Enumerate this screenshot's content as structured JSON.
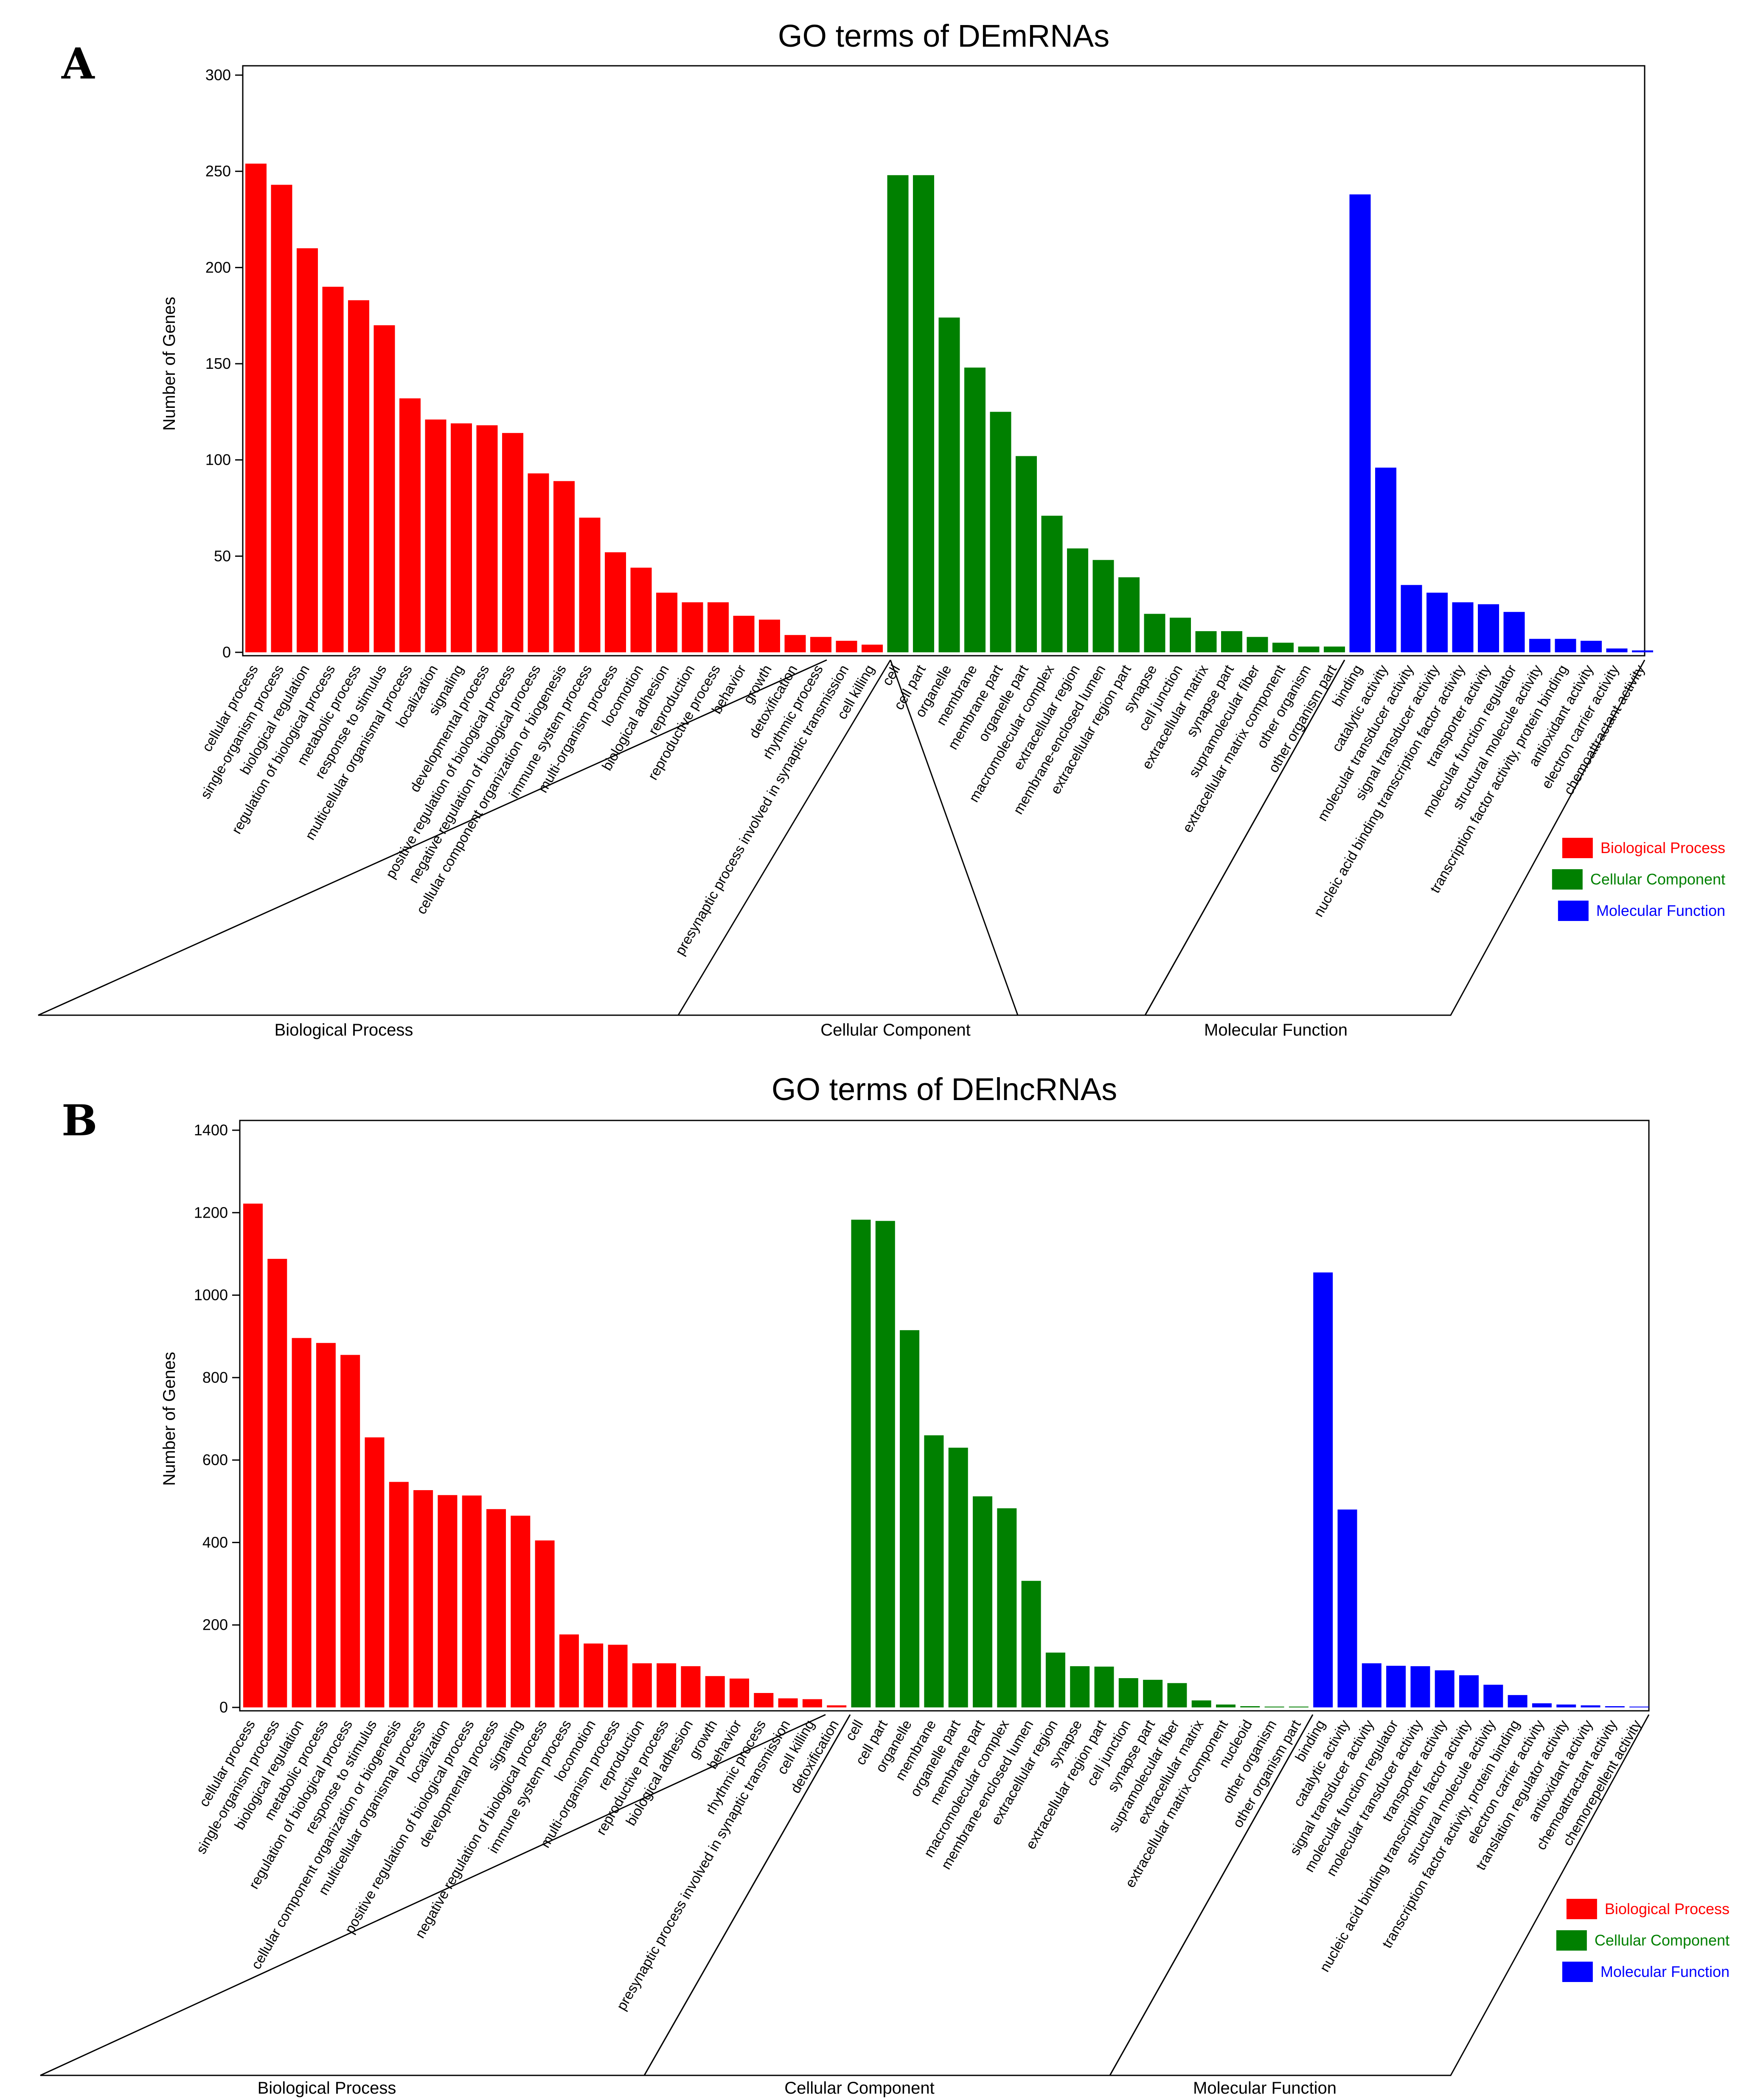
{
  "colors": {
    "biological": "#ff0000",
    "cellular": "#008000",
    "molecular": "#0000ff"
  },
  "chart_data": [
    {
      "panel_label": "A",
      "type": "bar",
      "title": "GO terms of DEmRNAs",
      "ylabel": "Number of Genes",
      "ylim": [
        0,
        300
      ],
      "yticks": [
        0,
        50,
        100,
        150,
        200,
        250,
        300
      ],
      "groups": [
        {
          "name": "Biological Process",
          "key": "biological",
          "categories": [
            "cellular process",
            "single-organism process",
            "biological regulation",
            "regulation of biological process",
            "metabolic process",
            "response to stimulus",
            "multicellular organismal process",
            "localization",
            "signaling",
            "developmental process",
            "positive regulation of biological process",
            "negative regulation of biological process",
            "cellular component organization or biogenesis",
            "immune system process",
            "multi-organism process",
            "locomotion",
            "biological adhesion",
            "reproduction",
            "reproductive process",
            "behavior",
            "growth",
            "detoxification",
            "rhythmic process",
            "presynaptic process involved in synaptic transmission",
            "cell killing"
          ],
          "values": [
            254,
            243,
            210,
            190,
            183,
            170,
            132,
            121,
            119,
            118,
            114,
            93,
            89,
            70,
            52,
            44,
            31,
            26,
            26,
            19,
            17,
            9,
            8,
            6,
            4
          ]
        },
        {
          "name": "Cellular Component",
          "key": "cellular",
          "categories": [
            "cell",
            "cell part",
            "organelle",
            "membrane",
            "membrane part",
            "organelle part",
            "macromolecular complex",
            "extracellular region",
            "membrane-enclosed lumen",
            "extracellular region part",
            "synapse",
            "cell junction",
            "extracellular matrix",
            "synapse part",
            "supramolecular fiber",
            "extracellular matrix component",
            "other organism",
            "other organism part"
          ],
          "values": [
            248,
            248,
            174,
            148,
            125,
            102,
            71,
            54,
            48,
            39,
            20,
            18,
            11,
            11,
            8,
            5,
            3,
            3
          ]
        },
        {
          "name": "Molecular Function",
          "key": "molecular",
          "categories": [
            "binding",
            "catalytic activity",
            "molecular transducer activity",
            "signal transducer activity",
            "nucleic acid binding transcription factor activity",
            "transporter activity",
            "molecular function regulator",
            "structural molecule activity",
            "transcription factor activity, protein binding",
            "antioxidant activity",
            "electron carrier activity",
            "chemoattractant activity"
          ],
          "values": [
            238,
            96,
            35,
            31,
            26,
            25,
            21,
            7,
            7,
            6,
            2,
            1
          ]
        }
      ],
      "legend": [
        "Biological Process",
        "Cellular Component",
        "Molecular Function"
      ]
    },
    {
      "panel_label": "B",
      "type": "bar",
      "title": "GO terms of DElncRNAs",
      "ylabel": "Number of Genes",
      "ylim": [
        0,
        1400
      ],
      "yticks": [
        0,
        200,
        400,
        600,
        800,
        1000,
        1200,
        1400
      ],
      "groups": [
        {
          "name": "Biological Process",
          "key": "biological",
          "categories": [
            "cellular process",
            "single-organism process",
            "biological regulation",
            "metabolic process",
            "regulation of biological process",
            "response to stimulus",
            "cellular component organization or biogenesis",
            "multicellular organismal process",
            "localization",
            "positive regulation of biological process",
            "developmental process",
            "signaling",
            "negative regulation of biological process",
            "immune system process",
            "locomotion",
            "multi-organism process",
            "reproduction",
            "reproductive process",
            "biological adhesion",
            "growth",
            "behavior",
            "rhythmic process",
            "presynaptic process involved in synaptic transmission",
            "cell killing",
            "detoxification"
          ],
          "values": [
            1222,
            1088,
            896,
            884,
            855,
            655,
            547,
            527,
            515,
            514,
            481,
            465,
            405,
            177,
            155,
            152,
            107,
            107,
            100,
            76,
            70,
            35,
            22,
            20,
            5
          ]
        },
        {
          "name": "Cellular Component",
          "key": "cellular",
          "categories": [
            "cell",
            "cell part",
            "organelle",
            "membrane",
            "organelle part",
            "membrane part",
            "macromolecular complex",
            "membrane-enclosed lumen",
            "extracellular region",
            "synapse",
            "extracellular region part",
            "cell junction",
            "synapse part",
            "supramolecular fiber",
            "extracellular matrix",
            "extracellular matrix component",
            "nucleoid",
            "other organism",
            "other organism part"
          ],
          "values": [
            1183,
            1180,
            915,
            660,
            630,
            512,
            483,
            307,
            133,
            100,
            99,
            71,
            67,
            59,
            17,
            7,
            3,
            2,
            2
          ]
        },
        {
          "name": "Molecular Function",
          "key": "molecular",
          "categories": [
            "binding",
            "catalytic activity",
            "signal transducer activity",
            "molecular function regulator",
            "molecular transducer activity",
            "transporter activity",
            "nucleic acid binding transcription factor activity",
            "structural molecule activity",
            "transcription factor activity, protein binding",
            "electron carrier activity",
            "translation regulator activity",
            "antioxidant activity",
            "chemoattractant activity",
            "chemorepellent activity"
          ],
          "values": [
            1055,
            480,
            107,
            101,
            100,
            90,
            78,
            55,
            30,
            10,
            7,
            5,
            3,
            2
          ]
        }
      ],
      "legend": [
        "Biological Process",
        "Cellular Component",
        "Molecular Function"
      ]
    }
  ]
}
